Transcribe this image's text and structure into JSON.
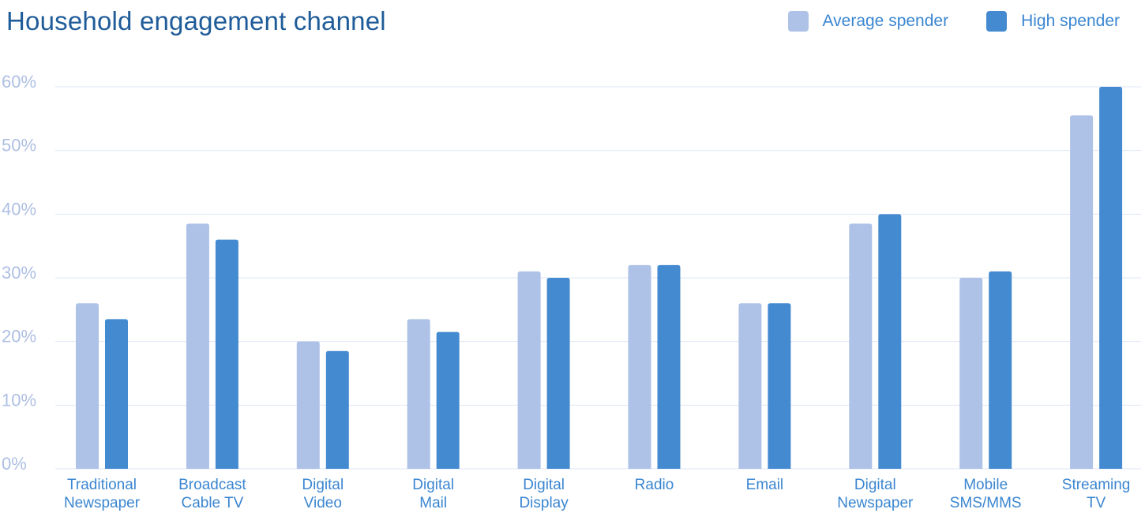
{
  "chart_data": {
    "type": "bar",
    "title": "Household engagement channel",
    "categories": [
      [
        "Traditional",
        "Newspaper"
      ],
      [
        "Broadcast",
        "Cable TV"
      ],
      [
        "Digital",
        "Video"
      ],
      [
        "Digital",
        "Mail"
      ],
      [
        "Digital",
        "Display"
      ],
      [
        "Radio"
      ],
      [
        "Email"
      ],
      [
        "Digital",
        "Newspaper"
      ],
      [
        "Mobile",
        "SMS/MMS"
      ],
      [
        "Streaming",
        "TV"
      ]
    ],
    "series": [
      {
        "name": "Average spender",
        "color": "#aec2e8",
        "values": [
          26,
          38.5,
          20,
          23.5,
          31,
          32,
          26,
          38.5,
          30,
          55.5
        ]
      },
      {
        "name": "High spender",
        "color": "#448ad0",
        "values": [
          23.5,
          36,
          18.5,
          21.5,
          30,
          32,
          26,
          40,
          31,
          60
        ]
      }
    ],
    "y_ticks": [
      "0%",
      "10%",
      "20%",
      "30%",
      "40%",
      "50%",
      "60%"
    ],
    "ylim": [
      0,
      60
    ],
    "grid": true,
    "legend_position": "top-right"
  }
}
